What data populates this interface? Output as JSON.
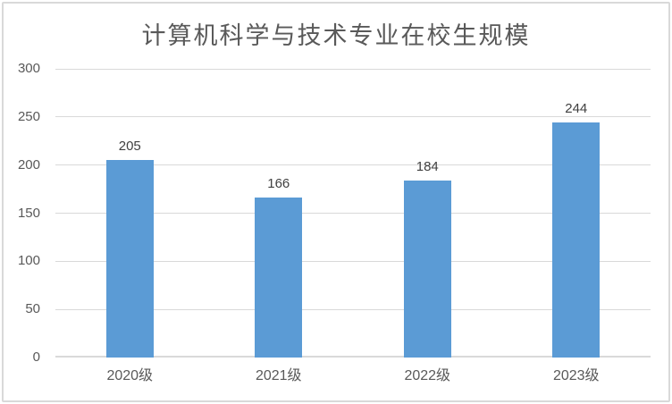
{
  "chart_data": {
    "type": "bar",
    "title": "计算机科学与技术专业在校生规模",
    "categories": [
      "2020级",
      "2021级",
      "2022级",
      "2023级"
    ],
    "values": [
      205,
      166,
      184,
      244
    ],
    "data_labels": [
      "205",
      "166",
      "184",
      "244"
    ],
    "xlabel": "",
    "ylabel": "",
    "ylim": [
      0,
      300
    ],
    "yticks": [
      0,
      50,
      100,
      150,
      200,
      250,
      300
    ],
    "grid": "horizontal",
    "legend": "none",
    "colors": {
      "bar": "#5B9BD5",
      "gridline": "#D9D9D9",
      "axis_line": "#D9D9D9",
      "title_text": "#595959",
      "tick_label_text": "#595959",
      "data_label_text": "#404040",
      "frame_border": "#D9D9D9",
      "background": "#FFFFFF"
    }
  }
}
